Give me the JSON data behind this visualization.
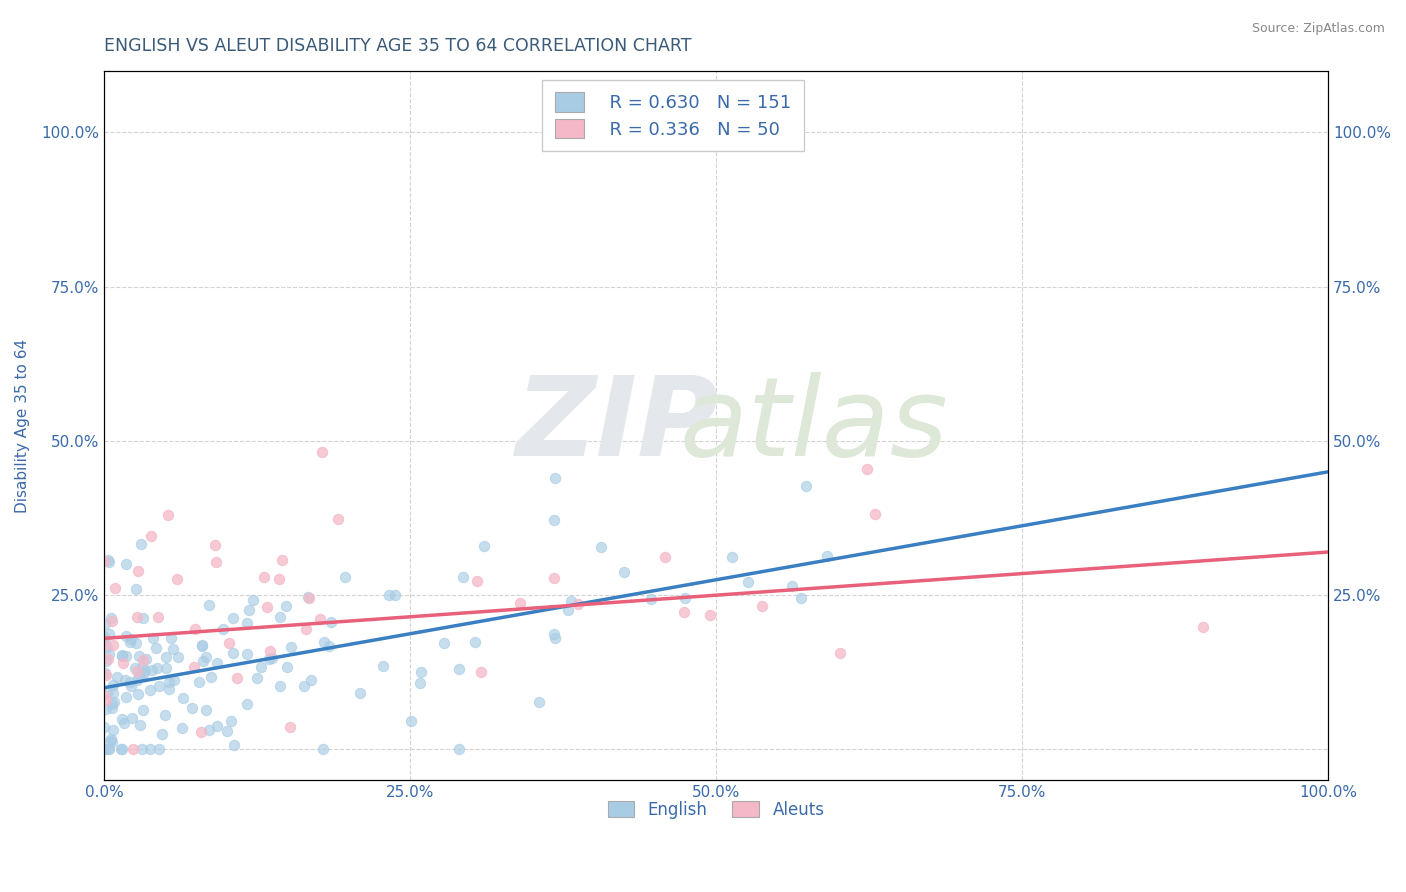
{
  "title": "ENGLISH VS ALEUT DISABILITY AGE 35 TO 64 CORRELATION CHART",
  "source": "Source: ZipAtlas.com",
  "ylabel": "Disability Age 35 to 64",
  "xlim": [
    0.0,
    1.0
  ],
  "ylim": [
    -0.05,
    1.1
  ],
  "xticks": [
    0.0,
    0.25,
    0.5,
    0.75,
    1.0
  ],
  "xticklabels": [
    "0.0%",
    "25.0%",
    "50.0%",
    "75.0%",
    "100.0%"
  ],
  "yticks": [
    0.0,
    0.25,
    0.5,
    0.75,
    1.0
  ],
  "ytick_left": [
    "",
    "25.0%",
    "50.0%",
    "75.0%",
    "100.0%"
  ],
  "ytick_right": [
    "",
    "25.0%",
    "50.0%",
    "75.0%",
    "100.0%"
  ],
  "english_R": 0.63,
  "english_N": 151,
  "aleut_R": 0.336,
  "aleut_N": 50,
  "english_color": "#a8cce4",
  "aleut_color": "#f4b8c8",
  "english_line_color": "#3a7fc1",
  "aleut_line_color": "#e8607a",
  "title_color": "#3a5a78",
  "legend_text_color": "#3a6aaa",
  "background_color": "#ffffff",
  "grid_color": "#c8c8c8",
  "tick_color": "#3a6aaa",
  "english_slope": 0.35,
  "english_intercept": 0.1,
  "aleut_slope": 0.14,
  "aleut_intercept": 0.18,
  "legend_english_label": "English",
  "legend_aleut_label": "Aleuts"
}
